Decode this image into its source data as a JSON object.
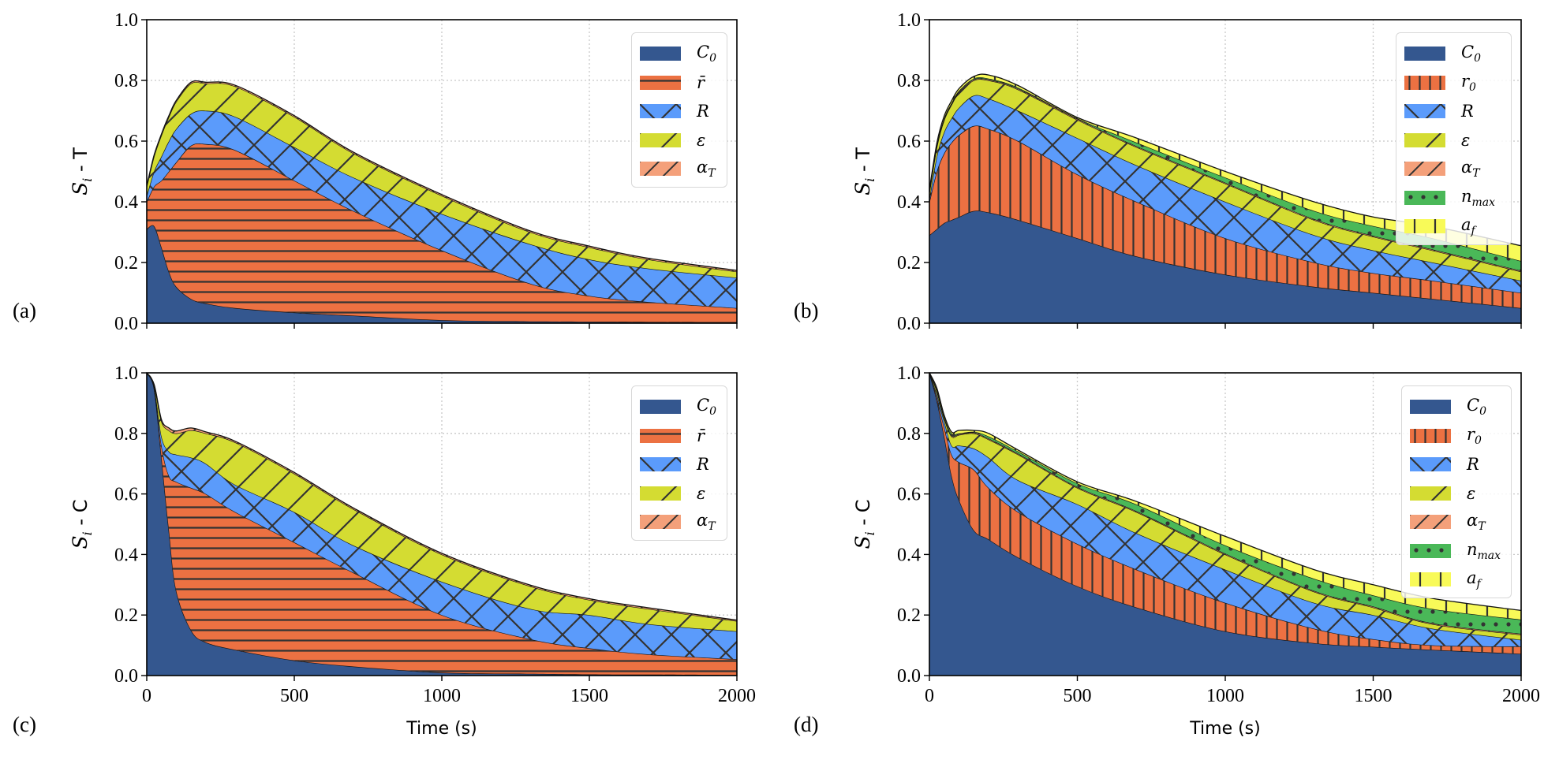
{
  "figure": {
    "panel_tags": [
      "(a)",
      "(b)",
      "(c)",
      "(d)"
    ]
  },
  "chart_data": [
    {
      "panel": "(a)",
      "type": "area",
      "stacked": true,
      "x": [
        0,
        25,
        50,
        75,
        100,
        150,
        200,
        300,
        500,
        700,
        1000,
        1300,
        1500,
        1700,
        2000
      ],
      "xlim": [
        0,
        2000
      ],
      "ylim": [
        0,
        1.0
      ],
      "xticks": [
        0,
        500,
        1000,
        1500,
        2000
      ],
      "xtick_labels": [],
      "yticks": [
        0,
        0.2,
        0.4,
        0.6,
        0.8,
        1.0
      ],
      "ytick_labels": [
        "0.0",
        "0.2",
        "0.4",
        "0.6",
        "0.8",
        "1.0"
      ],
      "xlabel": "",
      "ylabel": {
        "base": "S",
        "sub": "i",
        "rest": " - T"
      },
      "grid": true,
      "legend_position": "top-right",
      "series": [
        {
          "name": "C_0",
          "label": {
            "base": "C",
            "sub": "0"
          },
          "color": "#34578f",
          "hatch": "none",
          "values": [
            0.31,
            0.32,
            0.25,
            0.17,
            0.12,
            0.08,
            0.065,
            0.05,
            0.035,
            0.025,
            0.01,
            0.006,
            0.005,
            0.004,
            0.003
          ]
        },
        {
          "name": "r_bar",
          "label": {
            "base": "r̄",
            "sub": ""
          },
          "color": "#ec7142",
          "hatch": "horizontal",
          "values": [
            0.09,
            0.13,
            0.22,
            0.33,
            0.41,
            0.505,
            0.525,
            0.52,
            0.435,
            0.345,
            0.23,
            0.124,
            0.085,
            0.066,
            0.047
          ]
        },
        {
          "name": "R",
          "label": {
            "base": "R",
            "sub": ""
          },
          "color": "#5b9bfb",
          "hatch": "cross",
          "values": [
            0.02,
            0.05,
            0.08,
            0.1,
            0.11,
            0.105,
            0.11,
            0.11,
            0.11,
            0.11,
            0.12,
            0.13,
            0.12,
            0.11,
            0.1
          ]
        },
        {
          "name": "epsilon",
          "label": {
            "base": "ε",
            "sub": ""
          },
          "color": "#d4dc32",
          "hatch": "diagonal",
          "values": [
            0.03,
            0.05,
            0.07,
            0.08,
            0.09,
            0.1,
            0.09,
            0.1,
            0.1,
            0.08,
            0.06,
            0.04,
            0.04,
            0.03,
            0.02
          ]
        },
        {
          "name": "alpha_T",
          "label": {
            "base": "α",
            "sub": "T"
          },
          "color": "#f4a07a",
          "hatch": "diagonal-fine",
          "values": [
            0.002,
            0.004,
            0.004,
            0.004,
            0.004,
            0.004,
            0.004,
            0.004,
            0.004,
            0.004,
            0.004,
            0.004,
            0.004,
            0.004,
            0.004
          ]
        }
      ]
    },
    {
      "panel": "(b)",
      "type": "area",
      "stacked": true,
      "x": [
        0,
        25,
        50,
        75,
        100,
        150,
        200,
        300,
        500,
        700,
        1000,
        1300,
        1500,
        1700,
        2000
      ],
      "xlim": [
        0,
        2000
      ],
      "ylim": [
        0,
        1.0
      ],
      "xticks": [
        0,
        500,
        1000,
        1500,
        2000
      ],
      "xtick_labels": [],
      "yticks": [
        0,
        0.2,
        0.4,
        0.6,
        0.8,
        1.0
      ],
      "ytick_labels": [
        "0.0",
        "0.2",
        "0.4",
        "0.6",
        "0.8",
        "1.0"
      ],
      "xlabel": "",
      "ylabel": {
        "base": "S",
        "sub": "i",
        "rest": " - T"
      },
      "grid": true,
      "legend_position": "top-right",
      "series": [
        {
          "name": "C_0",
          "label": {
            "base": "C",
            "sub": "0"
          },
          "color": "#34578f",
          "hatch": "none",
          "values": [
            0.29,
            0.31,
            0.33,
            0.34,
            0.35,
            0.37,
            0.365,
            0.34,
            0.28,
            0.22,
            0.16,
            0.12,
            0.1,
            0.08,
            0.05
          ]
        },
        {
          "name": "r_0",
          "label": {
            "base": "r",
            "sub": "0"
          },
          "color": "#ec7142",
          "hatch": "vertical",
          "values": [
            0.11,
            0.19,
            0.23,
            0.255,
            0.27,
            0.28,
            0.275,
            0.26,
            0.21,
            0.18,
            0.12,
            0.08,
            0.065,
            0.06,
            0.05
          ]
        },
        {
          "name": "R",
          "label": {
            "base": "R",
            "sub": ""
          },
          "color": "#5b9bfb",
          "hatch": "cross",
          "values": [
            0.01,
            0.05,
            0.07,
            0.08,
            0.09,
            0.1,
            0.1,
            0.1,
            0.12,
            0.12,
            0.12,
            0.09,
            0.075,
            0.06,
            0.04
          ]
        },
        {
          "name": "epsilon",
          "label": {
            "base": "ε",
            "sub": ""
          },
          "color": "#d4dc32",
          "hatch": "diagonal",
          "values": [
            0.02,
            0.03,
            0.04,
            0.045,
            0.05,
            0.05,
            0.06,
            0.07,
            0.06,
            0.06,
            0.06,
            0.05,
            0.045,
            0.04,
            0.03
          ]
        },
        {
          "name": "alpha_T",
          "label": {
            "base": "α",
            "sub": "T"
          },
          "color": "#f4a07a",
          "hatch": "diagonal-fine",
          "values": [
            0.003,
            0.003,
            0.003,
            0.003,
            0.003,
            0.003,
            0.003,
            0.003,
            0.003,
            0.003,
            0.003,
            0.003,
            0.003,
            0.003,
            0.003
          ]
        },
        {
          "name": "n_max",
          "label": {
            "base": "n",
            "sub": "max"
          },
          "color": "#4ab858",
          "hatch": "dots",
          "values": [
            0.002,
            0.003,
            0.003,
            0.003,
            0.003,
            0.003,
            0.003,
            0.003,
            0.002,
            0.012,
            0.017,
            0.027,
            0.032,
            0.037,
            0.032
          ]
        },
        {
          "name": "a_f",
          "label": {
            "base": "a",
            "sub": "f"
          },
          "color": "#f8fa58",
          "hatch": "vertical-sparse",
          "values": [
            0.005,
            0.007,
            0.007,
            0.007,
            0.007,
            0.007,
            0.012,
            0.007,
            0.003,
            0.015,
            0.02,
            0.03,
            0.03,
            0.04,
            0.05
          ]
        }
      ]
    },
    {
      "panel": "(c)",
      "type": "area",
      "stacked": true,
      "x": [
        0,
        25,
        50,
        75,
        100,
        150,
        200,
        300,
        500,
        700,
        1000,
        1300,
        1500,
        1700,
        2000
      ],
      "xlim": [
        0,
        2000
      ],
      "ylim": [
        0,
        1.0
      ],
      "xticks": [
        0,
        500,
        1000,
        1500,
        2000
      ],
      "xtick_labels": [
        "0",
        "500",
        "1000",
        "1500",
        "2000"
      ],
      "yticks": [
        0,
        0.2,
        0.4,
        0.6,
        0.8,
        1.0
      ],
      "ytick_labels": [
        "0.0",
        "0.2",
        "0.4",
        "0.6",
        "0.8",
        "1.0"
      ],
      "xlabel": "Time (s)",
      "ylabel": {
        "base": "S",
        "sub": "i",
        "rest": " - C"
      },
      "grid": true,
      "legend_position": "top-right",
      "series": [
        {
          "name": "C_0",
          "label": {
            "base": "C",
            "sub": "0"
          },
          "color": "#34578f",
          "hatch": "none",
          "values": [
            1.0,
            0.95,
            0.72,
            0.48,
            0.28,
            0.15,
            0.11,
            0.085,
            0.05,
            0.03,
            0.01,
            0.006,
            0.004,
            0.003,
            0.002
          ]
        },
        {
          "name": "r_bar",
          "label": {
            "base": "r̄",
            "sub": ""
          },
          "color": "#ec7142",
          "hatch": "horizontal",
          "values": [
            0,
            0,
            0.04,
            0.18,
            0.36,
            0.47,
            0.49,
            0.455,
            0.39,
            0.31,
            0.19,
            0.114,
            0.086,
            0.067,
            0.052
          ]
        },
        {
          "name": "R",
          "label": {
            "base": "R",
            "sub": ""
          },
          "color": "#5b9bfb",
          "hatch": "cross",
          "values": [
            0,
            0.005,
            0.03,
            0.08,
            0.09,
            0.1,
            0.1,
            0.09,
            0.1,
            0.09,
            0.11,
            0.1,
            0.11,
            0.1,
            0.092
          ]
        },
        {
          "name": "epsilon",
          "label": {
            "base": "ε",
            "sub": ""
          },
          "color": "#d4dc32",
          "hatch": "diagonal",
          "values": [
            0,
            0.005,
            0.05,
            0.07,
            0.07,
            0.09,
            0.1,
            0.14,
            0.127,
            0.12,
            0.09,
            0.075,
            0.05,
            0.05,
            0.034
          ]
        },
        {
          "name": "alpha_T",
          "label": {
            "base": "α",
            "sub": "T"
          },
          "color": "#f4a07a",
          "hatch": "diagonal-fine",
          "values": [
            0,
            0.002,
            0.005,
            0.008,
            0.008,
            0.008,
            0.005,
            0.004,
            0.004,
            0.004,
            0.004,
            0.004,
            0.004,
            0.004,
            0.003
          ]
        }
      ]
    },
    {
      "panel": "(d)",
      "type": "area",
      "stacked": true,
      "x": [
        0,
        25,
        50,
        75,
        100,
        150,
        200,
        300,
        500,
        700,
        1000,
        1300,
        1500,
        1700,
        2000
      ],
      "xlim": [
        0,
        2000
      ],
      "ylim": [
        0,
        1.0
      ],
      "xticks": [
        0,
        500,
        1000,
        1500,
        2000
      ],
      "xtick_labels": [
        "0",
        "500",
        "1000",
        "1500",
        "2000"
      ],
      "yticks": [
        0,
        0.2,
        0.4,
        0.6,
        0.8,
        1.0
      ],
      "ytick_labels": [
        "0.0",
        "0.2",
        "0.4",
        "0.6",
        "0.8",
        "1.0"
      ],
      "xlabel": "Time (s)",
      "ylabel": {
        "base": "S",
        "sub": "i",
        "rest": " - C"
      },
      "grid": true,
      "legend_position": "top-right",
      "series": [
        {
          "name": "C_0",
          "label": {
            "base": "C",
            "sub": "0"
          },
          "color": "#34578f",
          "hatch": "none",
          "values": [
            1.0,
            0.91,
            0.79,
            0.66,
            0.58,
            0.48,
            0.45,
            0.39,
            0.295,
            0.225,
            0.146,
            0.107,
            0.095,
            0.085,
            0.072
          ]
        },
        {
          "name": "r_0",
          "label": {
            "base": "r",
            "sub": "0"
          },
          "color": "#ec7142",
          "hatch": "vertical",
          "values": [
            0,
            0.01,
            0.03,
            0.07,
            0.125,
            0.2,
            0.17,
            0.15,
            0.14,
            0.125,
            0.094,
            0.048,
            0.025,
            0.015,
            0.024
          ]
        },
        {
          "name": "R",
          "label": {
            "base": "R",
            "sub": ""
          },
          "color": "#5b9bfb",
          "hatch": "cross",
          "values": [
            0,
            0.01,
            0.02,
            0.03,
            0.055,
            0.07,
            0.1,
            0.105,
            0.131,
            0.12,
            0.11,
            0.085,
            0.08,
            0.055,
            0.022
          ]
        },
        {
          "name": "epsilon",
          "label": {
            "base": "ε",
            "sub": ""
          },
          "color": "#d4dc32",
          "hatch": "diagonal",
          "values": [
            0,
            0.01,
            0.01,
            0.03,
            0.035,
            0.05,
            0.06,
            0.085,
            0.054,
            0.07,
            0.05,
            0.037,
            0.025,
            0.015,
            0.017
          ]
        },
        {
          "name": "alpha_T",
          "label": {
            "base": "α",
            "sub": "T"
          },
          "color": "#f4a07a",
          "hatch": "diagonal-fine",
          "values": [
            0,
            0.003,
            0.003,
            0.003,
            0.003,
            0.003,
            0.003,
            0.003,
            0.003,
            0.003,
            0.003,
            0.003,
            0.003,
            0.003,
            0.003
          ]
        },
        {
          "name": "n_max",
          "label": {
            "base": "n",
            "sub": "max"
          },
          "color": "#4ab858",
          "hatch": "dots",
          "values": [
            0,
            0.002,
            0.002,
            0.007,
            0.002,
            0.002,
            0.007,
            0.007,
            0.012,
            0.022,
            0.027,
            0.04,
            0.037,
            0.047,
            0.047
          ]
        },
        {
          "name": "a_f",
          "label": {
            "base": "a",
            "sub": "f"
          },
          "color": "#f8fa58",
          "hatch": "vertical-sparse",
          "values": [
            0,
            0.005,
            0.005,
            0.005,
            0.01,
            0.005,
            0.01,
            0.005,
            0.005,
            0.01,
            0.03,
            0.03,
            0.035,
            0.035,
            0.03
          ]
        }
      ]
    }
  ]
}
